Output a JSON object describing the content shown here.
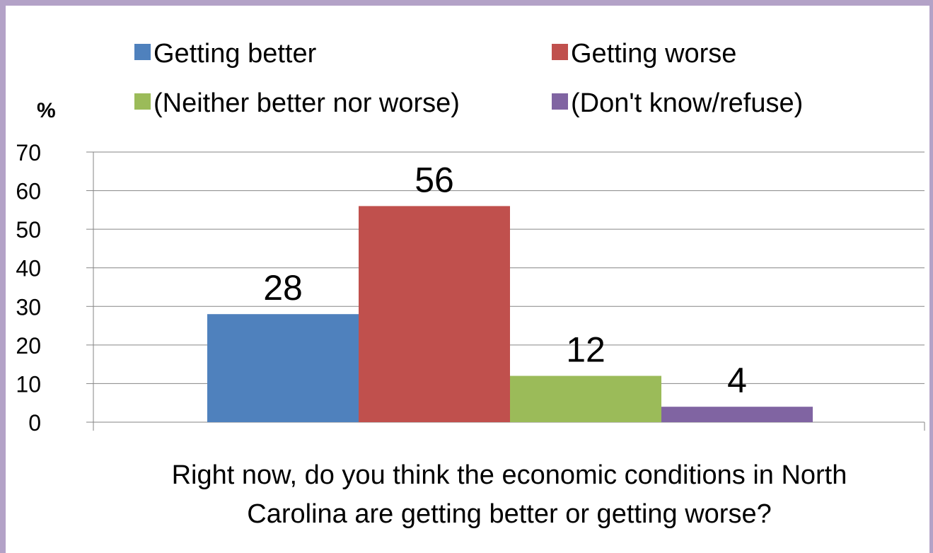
{
  "chart_data": {
    "type": "bar",
    "categories": [
      "Getting better",
      "Getting worse",
      "(Neither better nor worse)",
      "(Don't know/refuse)"
    ],
    "values": [
      28,
      56,
      12,
      4
    ],
    "colors": [
      "#4F81BD",
      "#C0504D",
      "#9BBB59",
      "#8064A2"
    ],
    "ylabel": "%",
    "xlabel_line1": "Right now, do you think the economic conditions in North",
    "xlabel_line2": "Carolina are getting better or getting worse?",
    "ylim": [
      0,
      70
    ],
    "yticks": [
      0,
      10,
      20,
      30,
      40,
      50,
      60,
      70
    ],
    "grid": true,
    "legend_position": "top",
    "data_labels": true
  },
  "frame": {
    "border_color": "#B3A2C7"
  }
}
